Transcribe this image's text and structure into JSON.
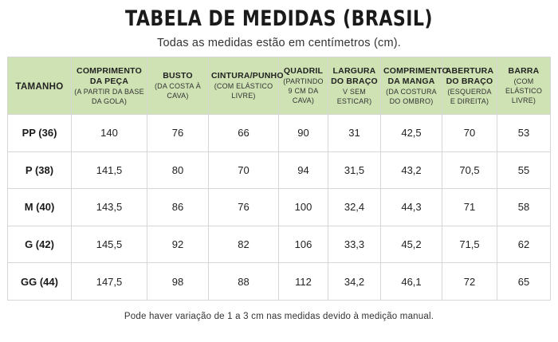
{
  "title": "TABELA DE MEDIDAS (BRASIL)",
  "subtitle": "Todas as medidas estão em centímetros (cm).",
  "table": {
    "size_header": "TAMANHO",
    "columns": [
      {
        "main": "COMPRIMENTO DA PEÇA",
        "sub": "(A PARTIR DA BASE DA GOLA)"
      },
      {
        "main": "BUSTO",
        "sub": "(DA COSTA À CAVA)"
      },
      {
        "main": "CINTURA/PUNHO",
        "sub": "(COM ELÁSTICO LIVRE)"
      },
      {
        "main": "QUADRIL",
        "sub": "(PARTINDO 9 CM DA CAVA)"
      },
      {
        "main": "LARGURA DO BRAÇO",
        "sub": "V SEM ESTICAR)"
      },
      {
        "main": "COMPRIMENTO DA MANGA",
        "sub": "(DA COSTURA DO OMBRO)"
      },
      {
        "main": "ABERTURA DO BRAÇO",
        "sub": "(ESQUERDA E DIREITA)"
      },
      {
        "main": "BARRA",
        "sub": "(COM ELÁSTICO LIVRE)"
      }
    ],
    "rows": [
      {
        "size": "PP (36)",
        "values": [
          "140",
          "76",
          "66",
          "90",
          "31",
          "42,5",
          "70",
          "53"
        ]
      },
      {
        "size": "P (38)",
        "values": [
          "141,5",
          "80",
          "70",
          "94",
          "31,5",
          "43,2",
          "70,5",
          "55"
        ]
      },
      {
        "size": "M (40)",
        "values": [
          "143,5",
          "86",
          "76",
          "100",
          "32,4",
          "44,3",
          "71",
          "58"
        ]
      },
      {
        "size": "G (42)",
        "values": [
          "145,5",
          "92",
          "82",
          "106",
          "33,3",
          "45,2",
          "71,5",
          "62"
        ]
      },
      {
        "size": "GG (44)",
        "values": [
          "147,5",
          "98",
          "88",
          "112",
          "34,2",
          "46,1",
          "72",
          "65"
        ]
      }
    ]
  },
  "footnote": "Pode haver variação de 1 a 3 cm nas medidas devido à medição manual.",
  "colors": {
    "header_background": "#cfe2b3",
    "grid_lines": "#d7d7d7"
  }
}
